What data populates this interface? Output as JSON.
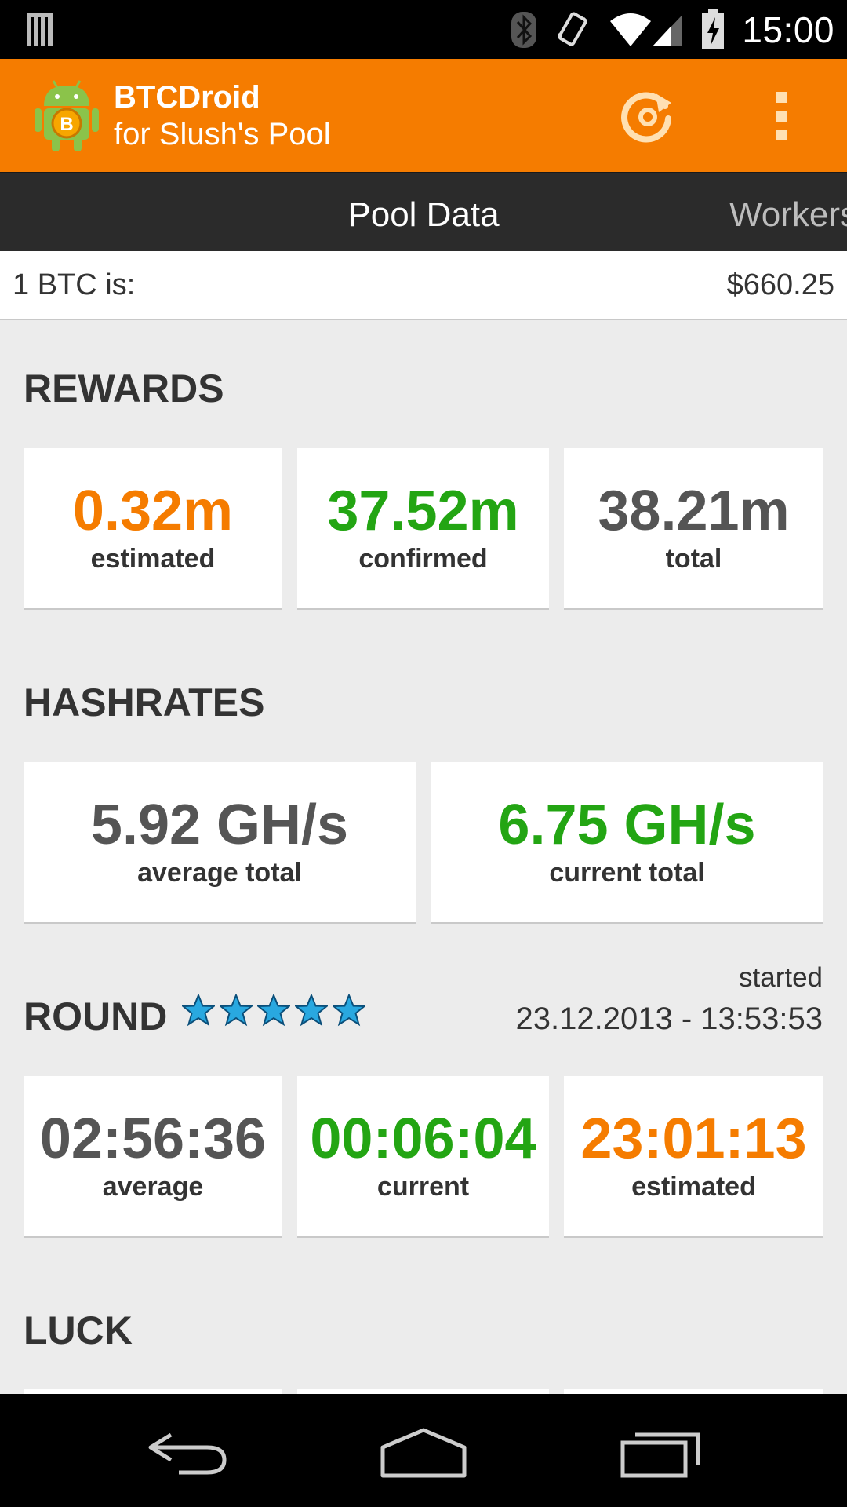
{
  "status_bar": {
    "time": "15:00",
    "icons": [
      "notification-icon",
      "bluetooth-icon",
      "vibrate-icon",
      "wifi-icon",
      "cell-signal-icon",
      "battery-charging-icon"
    ]
  },
  "app_bar": {
    "title": "BTCDroid",
    "subtitle": "for Slush's Pool",
    "accent_color": "#f57c00"
  },
  "tabs": {
    "active": "Pool Data",
    "next": "Workers"
  },
  "price": {
    "label": "1 BTC is:",
    "value": "$660.25"
  },
  "rewards": {
    "title": "REWARDS",
    "items": [
      {
        "value": "0.32m",
        "label": "estimated",
        "color": "#f57c00"
      },
      {
        "value": "37.52m",
        "label": "confirmed",
        "color": "#23a513"
      },
      {
        "value": "38.21m",
        "label": "total",
        "color": "#555555"
      }
    ]
  },
  "hashrates": {
    "title": "HASHRATES",
    "items": [
      {
        "value": "5.92 GH/s",
        "label": "average total",
        "color": "#555555"
      },
      {
        "value": "6.75 GH/s",
        "label": "current total",
        "color": "#23a513"
      }
    ]
  },
  "round": {
    "title": "ROUND",
    "stars": 5,
    "started_label": "started",
    "started_value": "23.12.2013 - 13:53:53",
    "items": [
      {
        "value": "02:56:36",
        "label": "average",
        "color": "#555555"
      },
      {
        "value": "00:06:04",
        "label": "current",
        "color": "#23a513"
      },
      {
        "value": "23:01:13",
        "label": "estimated",
        "color": "#f57c00"
      }
    ]
  },
  "luck": {
    "title": "LUCK"
  }
}
